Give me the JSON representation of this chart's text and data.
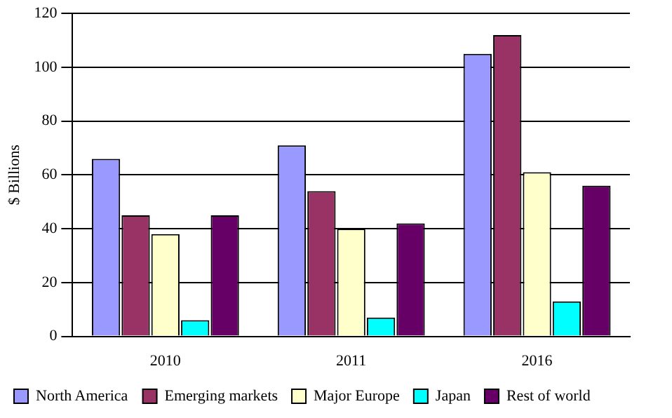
{
  "chart_data": {
    "type": "bar",
    "ylabel": "$ Billions",
    "categories": [
      "2010",
      "2011",
      "2016"
    ],
    "series": [
      {
        "name": "North America",
        "color": "#9999ff",
        "values": [
          66,
          71,
          105
        ]
      },
      {
        "name": "Emerging markets",
        "color": "#993366",
        "values": [
          45,
          54,
          112
        ]
      },
      {
        "name": "Major Europe",
        "color": "#ffffcc",
        "values": [
          38,
          40,
          61
        ]
      },
      {
        "name": "Japan",
        "color": "#00ffff",
        "values": [
          6,
          7,
          13
        ]
      },
      {
        "name": "Rest of world",
        "color": "#660066",
        "values": [
          45,
          42,
          56
        ]
      }
    ],
    "ylim": [
      0,
      120
    ],
    "yticks": [
      0,
      20,
      40,
      60,
      80,
      100,
      120
    ],
    "grid": "y",
    "legend": "bottom"
  }
}
